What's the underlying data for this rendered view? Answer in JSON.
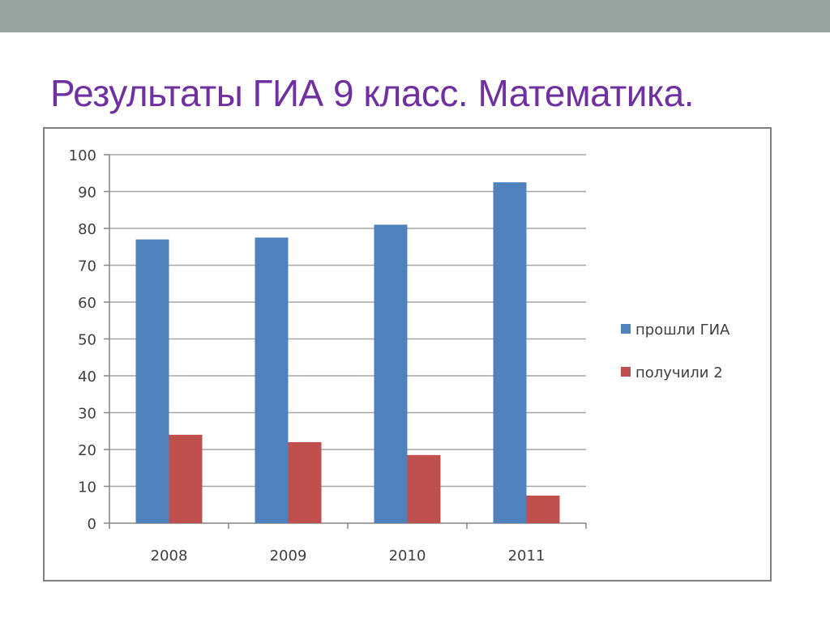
{
  "slide": {
    "title": "Результаты ГИА 9 класс. Математика.",
    "title_color": "#7030a0",
    "band_color": "#96a39e"
  },
  "chart_data": {
    "type": "bar",
    "categories": [
      "2008",
      "2009",
      "2010",
      "2011"
    ],
    "series": [
      {
        "name": "прошли ГИА",
        "values": [
          77,
          77.5,
          81,
          92.5
        ],
        "color": "#4f81bd"
      },
      {
        "name": "получили 2",
        "values": [
          24,
          22,
          18.5,
          7.5
        ],
        "color": "#c0504d"
      }
    ],
    "ylim": [
      0,
      100
    ],
    "yticks": [
      0,
      10,
      20,
      30,
      40,
      50,
      60,
      70,
      80,
      90,
      100
    ],
    "grid": true,
    "legend": "right"
  }
}
